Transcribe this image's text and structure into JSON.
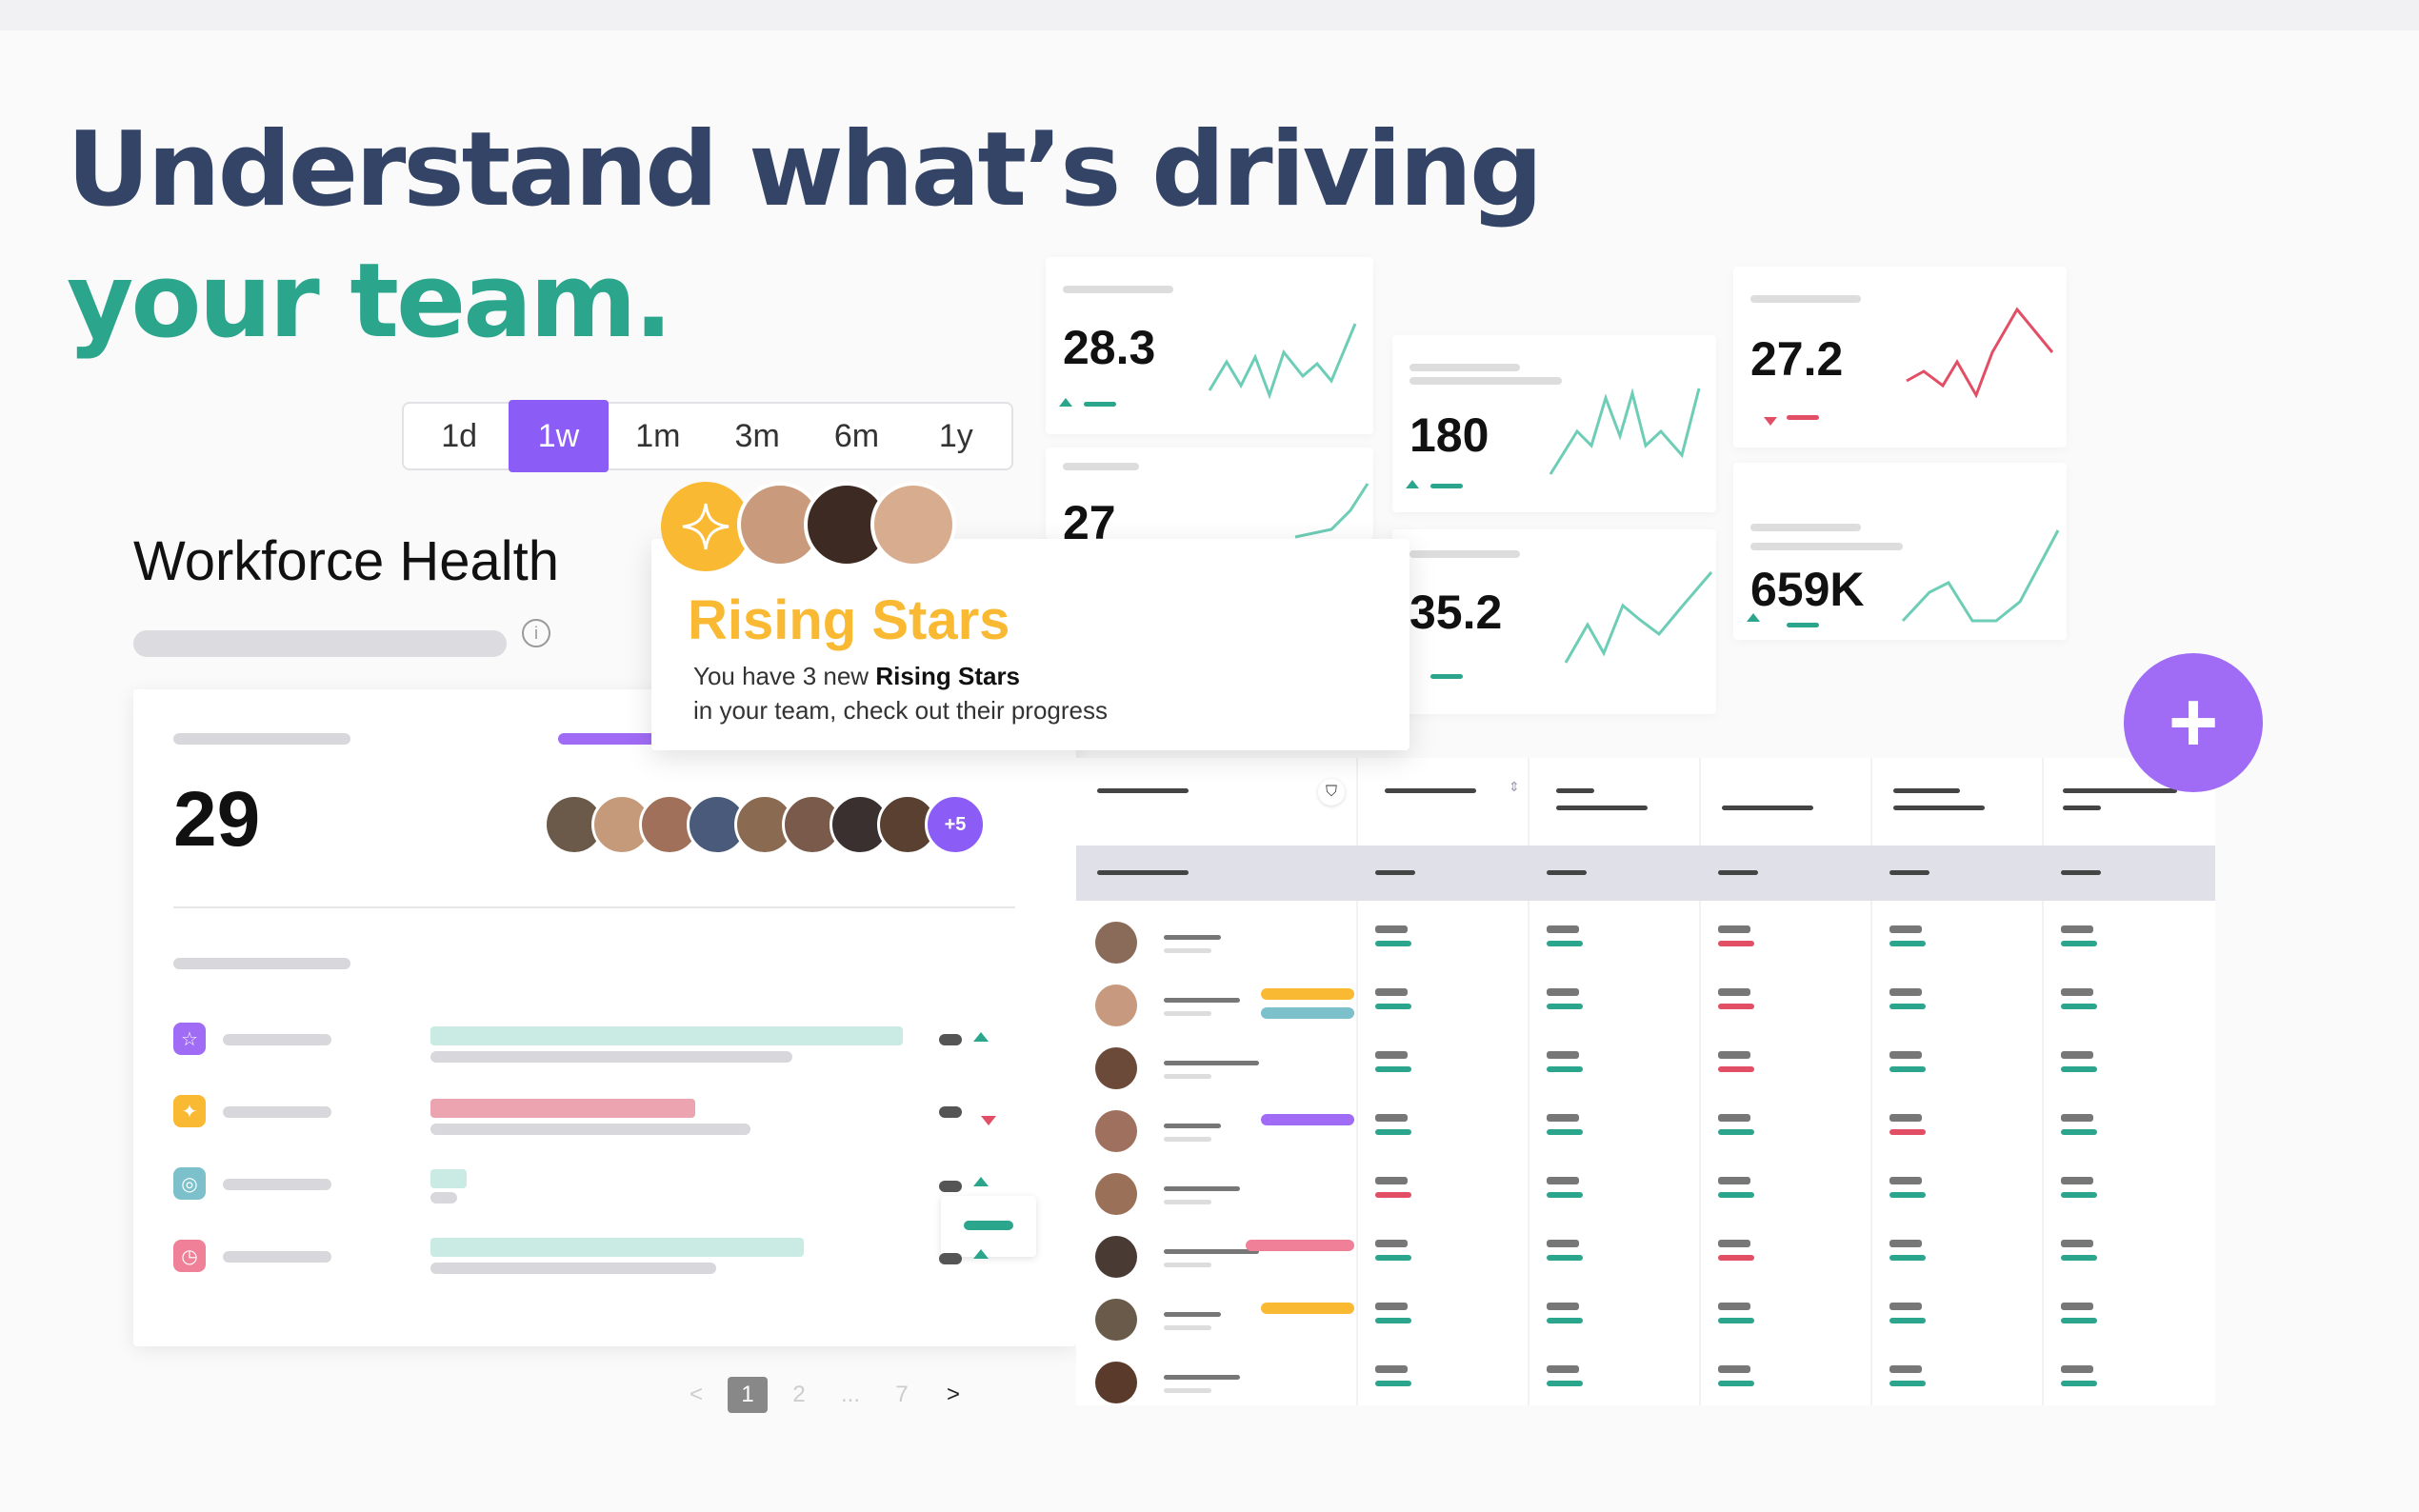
{
  "headline": {
    "line1": "Understand what’s driving",
    "line2": "your team."
  },
  "time_range": {
    "options": [
      "1d",
      "1w",
      "1m",
      "3m",
      "6m",
      "1y"
    ],
    "selected": "1w"
  },
  "workforce": {
    "title": "Workforce Health",
    "count": "29",
    "more_avatars": "+5"
  },
  "rising_stars": {
    "title": "Rising Stars",
    "desc_prefix": "You have 3 new ",
    "desc_bold": "Rising Stars",
    "desc_line2": "in your team, check out their progress"
  },
  "metrics": [
    "28.3",
    "27",
    "180",
    "35.2",
    "27.2",
    "659K"
  ],
  "pagination": {
    "prev": "<",
    "pages": [
      "1",
      "2",
      "...",
      "7"
    ],
    "next": ">"
  },
  "fab": {
    "label": "+"
  },
  "colors": {
    "accent": "#8b5cf6",
    "green": "#2ca58d",
    "red": "#e24e65",
    "yellow": "#f9b933",
    "navy": "#334466"
  },
  "icons": [
    "star-icon",
    "sparkle-icon",
    "globe-icon",
    "clock-icon",
    "filter-icon",
    "plus-icon",
    "info-icon",
    "sort-icon"
  ]
}
